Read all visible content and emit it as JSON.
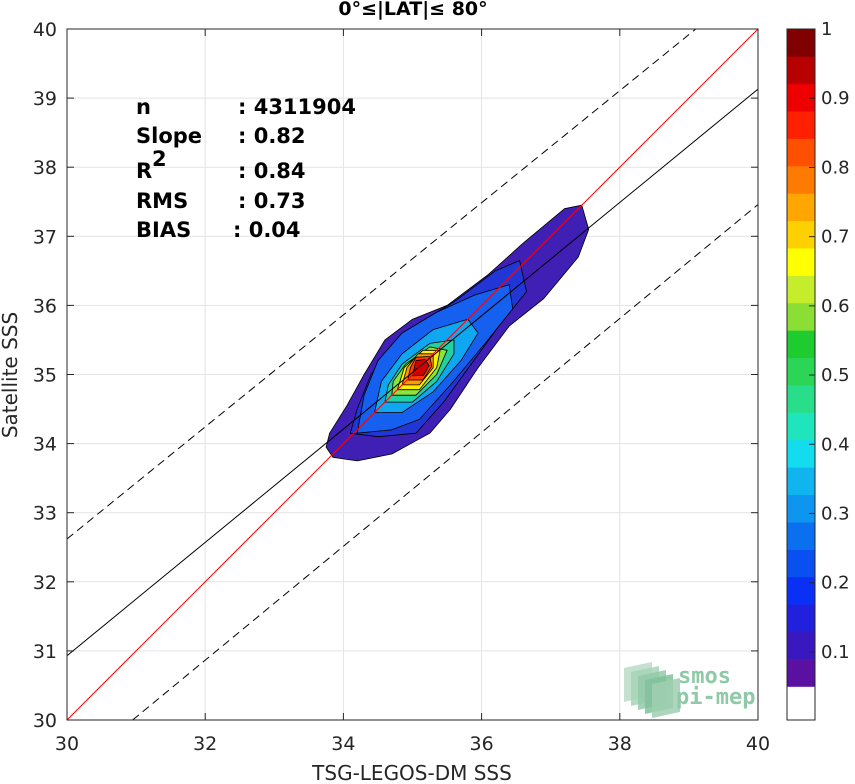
{
  "chart_data": {
    "type": "scatter",
    "title": "0°≤|LAT|≤ 80°",
    "xlabel": "TSG-LEGOS-DM SSS",
    "ylabel": "Satellite SSS",
    "xlim": [
      30,
      40
    ],
    "ylim": [
      30,
      40
    ],
    "x_ticks": [
      "30",
      "32",
      "34",
      "36",
      "38",
      "40"
    ],
    "y_ticks": [
      "30",
      "31",
      "32",
      "33",
      "34",
      "35",
      "36",
      "37",
      "38",
      "39",
      "40"
    ],
    "grid": true,
    "stats": {
      "n_label": "n",
      "n_value": ": 4311904",
      "slope_label": "Slope",
      "slope_value": ": 0.82",
      "r2_label": "R",
      "r2_sup": "2",
      "r2_value": ": 0.84",
      "rms_label": "RMS",
      "rms_value": ": 0.73",
      "bias_label": "BIAS",
      "bias_value": ": 0.04"
    },
    "lines": [
      {
        "name": "one-to-one",
        "color": "#ff0000",
        "style": "solid",
        "x": [
          30,
          40
        ],
        "y": [
          30,
          40
        ]
      },
      {
        "name": "regression",
        "color": "#000000",
        "style": "solid",
        "x": [
          30,
          40
        ],
        "y": [
          30.93,
          39.13
        ]
      },
      {
        "name": "upper-bound",
        "color": "#000000",
        "style": "dashed",
        "x": [
          30,
          39.1
        ],
        "y": [
          32.62,
          40
        ]
      },
      {
        "name": "lower-bound",
        "color": "#000000",
        "style": "dashed",
        "x": [
          30.95,
          40
        ],
        "y": [
          30,
          37.46
        ]
      }
    ],
    "density_contours": [
      {
        "level": 0.05,
        "color": "#3f1fb4",
        "points": [
          [
            33.75,
            33.95
          ],
          [
            33.85,
            33.8
          ],
          [
            34.2,
            33.75
          ],
          [
            34.7,
            33.85
          ],
          [
            35.25,
            34.15
          ],
          [
            35.55,
            34.5
          ],
          [
            35.95,
            35.1
          ],
          [
            36.4,
            35.7
          ],
          [
            36.9,
            36.1
          ],
          [
            37.4,
            36.7
          ],
          [
            37.55,
            37.1
          ],
          [
            37.45,
            37.45
          ],
          [
            37.2,
            37.4
          ],
          [
            36.6,
            36.9
          ],
          [
            36.1,
            36.45
          ],
          [
            35.5,
            36.0
          ],
          [
            35.0,
            35.8
          ],
          [
            34.6,
            35.5
          ],
          [
            34.3,
            35.0
          ],
          [
            34.05,
            34.55
          ],
          [
            33.8,
            34.15
          ]
        ]
      },
      {
        "level": 0.15,
        "color": "#2236d6",
        "points": [
          [
            34.1,
            34.15
          ],
          [
            34.5,
            34.1
          ],
          [
            35.05,
            34.15
          ],
          [
            35.45,
            34.6
          ],
          [
            35.85,
            35.15
          ],
          [
            36.25,
            35.7
          ],
          [
            36.65,
            36.2
          ],
          [
            36.55,
            36.65
          ],
          [
            36.2,
            36.5
          ],
          [
            35.6,
            36.05
          ],
          [
            35.1,
            35.75
          ],
          [
            34.7,
            35.4
          ],
          [
            34.4,
            35.0
          ],
          [
            34.2,
            34.5
          ]
        ]
      },
      {
        "level": 0.25,
        "color": "#1560ee",
        "points": [
          [
            34.2,
            34.15
          ],
          [
            34.7,
            34.2
          ],
          [
            35.1,
            34.35
          ],
          [
            35.55,
            34.85
          ],
          [
            36.05,
            35.45
          ],
          [
            36.45,
            35.95
          ],
          [
            36.4,
            36.3
          ],
          [
            35.9,
            36.15
          ],
          [
            35.35,
            35.9
          ],
          [
            34.85,
            35.6
          ],
          [
            34.5,
            35.2
          ],
          [
            34.3,
            34.7
          ]
        ]
      },
      {
        "level": 0.35,
        "color": "#10a7f2",
        "points": [
          [
            34.45,
            34.45
          ],
          [
            34.85,
            34.45
          ],
          [
            35.3,
            34.75
          ],
          [
            35.7,
            35.2
          ],
          [
            35.95,
            35.6
          ],
          [
            35.8,
            35.8
          ],
          [
            35.3,
            35.65
          ],
          [
            34.85,
            35.3
          ],
          [
            34.55,
            34.9
          ]
        ]
      },
      {
        "level": 0.45,
        "color": "#21d2a0",
        "points": [
          [
            34.6,
            34.6
          ],
          [
            35.0,
            34.6
          ],
          [
            35.35,
            34.9
          ],
          [
            35.6,
            35.3
          ],
          [
            35.6,
            35.5
          ],
          [
            35.25,
            35.45
          ],
          [
            34.85,
            35.15
          ],
          [
            34.65,
            34.85
          ]
        ]
      },
      {
        "level": 0.55,
        "color": "#8ee23c",
        "points": [
          [
            34.7,
            34.7
          ],
          [
            35.05,
            34.7
          ],
          [
            35.35,
            35.0
          ],
          [
            35.5,
            35.35
          ],
          [
            35.25,
            35.4
          ],
          [
            34.9,
            35.15
          ],
          [
            34.72,
            34.9
          ]
        ]
      },
      {
        "level": 0.65,
        "color": "#ffef00",
        "points": [
          [
            34.78,
            34.78
          ],
          [
            35.1,
            34.78
          ],
          [
            35.35,
            35.1
          ],
          [
            35.4,
            35.35
          ],
          [
            35.15,
            35.35
          ],
          [
            34.88,
            35.1
          ]
        ]
      },
      {
        "level": 0.75,
        "color": "#ff9a00",
        "points": [
          [
            34.85,
            34.85
          ],
          [
            35.1,
            34.85
          ],
          [
            35.3,
            35.1
          ],
          [
            35.3,
            35.3
          ],
          [
            35.08,
            35.3
          ],
          [
            34.92,
            35.1
          ]
        ]
      },
      {
        "level": 0.85,
        "color": "#ff3b00",
        "points": [
          [
            34.93,
            34.92
          ],
          [
            35.15,
            34.92
          ],
          [
            35.28,
            35.12
          ],
          [
            35.25,
            35.26
          ],
          [
            35.05,
            35.25
          ],
          [
            34.97,
            35.1
          ]
        ]
      },
      {
        "level": 0.92,
        "color": "#cf0000",
        "points": [
          [
            35.0,
            34.98
          ],
          [
            35.16,
            34.99
          ],
          [
            35.24,
            35.13
          ],
          [
            35.18,
            35.22
          ],
          [
            35.05,
            35.2
          ]
        ]
      }
    ],
    "colorbar": {
      "ticks": [
        "0.1",
        "0.2",
        "0.3",
        "0.4",
        "0.5",
        "0.6",
        "0.7",
        "0.8",
        "0.9",
        "1"
      ],
      "colors": [
        "#ffffff",
        "#5a10a0",
        "#3a18c0",
        "#2020dd",
        "#0a30f5",
        "#0a50f0",
        "#0a70f0",
        "#0d95f0",
        "#10b5f0",
        "#14dcef",
        "#1ee5bb",
        "#29de8a",
        "#2bd555",
        "#1fcc30",
        "#8ade34",
        "#c5ed2b",
        "#ffff00",
        "#ffd000",
        "#ffa600",
        "#ff7a00",
        "#ff5000",
        "#ff2000",
        "#ee0000",
        "#b80000",
        "#800000"
      ]
    },
    "logo": {
      "line1": "smos",
      "line2": "pi-mep"
    }
  }
}
